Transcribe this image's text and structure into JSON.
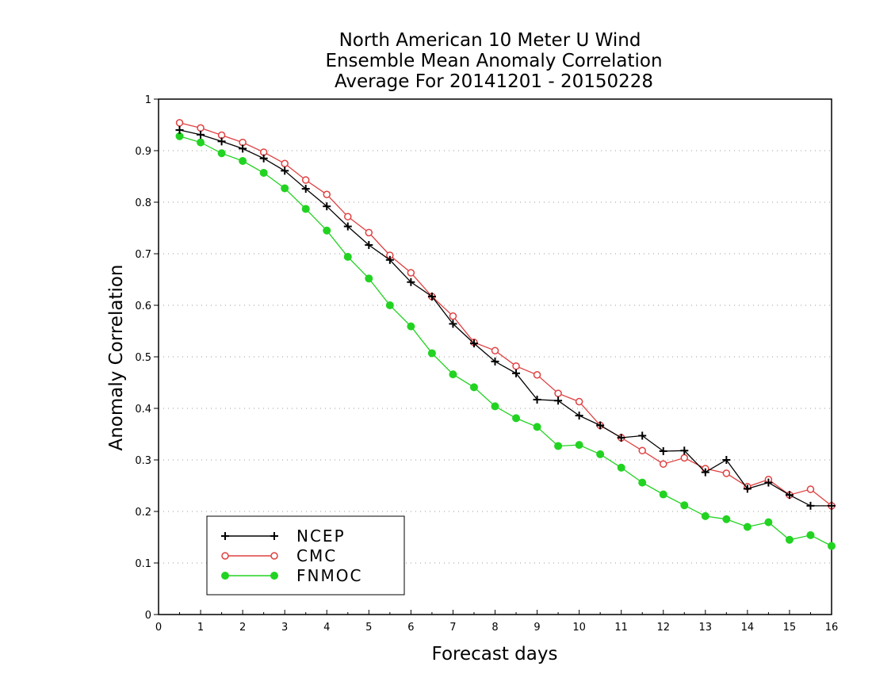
{
  "chart_data": {
    "type": "line",
    "title_lines": [
      "North American 10 Meter U Wind",
      "Ensemble Mean Anomaly Correlation",
      "Average For 20141201 - 20150228"
    ],
    "xlabel": "Forecast days",
    "ylabel": "Anomaly Correlation",
    "xlim": [
      0,
      16
    ],
    "ylim": [
      0,
      1
    ],
    "x_ticks": [
      0,
      1,
      2,
      3,
      4,
      5,
      6,
      7,
      8,
      9,
      10,
      11,
      12,
      13,
      14,
      15,
      16
    ],
    "y_ticks": [
      0,
      0.1,
      0.2,
      0.3,
      0.4,
      0.5,
      0.6,
      0.7,
      0.8,
      0.9,
      1
    ],
    "y_tick_labels": [
      "0",
      "0.1",
      "0.2",
      "0.3",
      "0.4",
      "0.5",
      "0.6",
      "0.7",
      "0.8",
      "0.9",
      "1"
    ],
    "x_tick_labels": [
      "0",
      "1",
      "2",
      "3",
      "4",
      "5",
      "6",
      "7",
      "8",
      "9",
      "10",
      "11",
      "12",
      "13",
      "14",
      "15",
      "16"
    ],
    "grid": "horizontal dotted",
    "legend_position": "bottom-left",
    "x": [
      0.5,
      1,
      1.5,
      2,
      2.5,
      3,
      3.5,
      4,
      4.5,
      5,
      5.5,
      6,
      6.5,
      7,
      7.5,
      8,
      8.5,
      9,
      9.5,
      10,
      10.5,
      11,
      11.5,
      12,
      12.5,
      13,
      13.5,
      14,
      14.5,
      15,
      15.5,
      16
    ],
    "series": [
      {
        "name": "NCEP",
        "color": "#000000",
        "marker": "plus",
        "values": [
          0.94,
          0.931,
          0.918,
          0.904,
          0.885,
          0.861,
          0.826,
          0.792,
          0.753,
          0.717,
          0.688,
          0.645,
          0.617,
          0.564,
          0.526,
          0.491,
          0.468,
          0.417,
          0.415,
          0.386,
          0.367,
          0.343,
          0.347,
          0.317,
          0.318,
          0.276,
          0.3,
          0.244,
          0.256,
          0.232,
          0.211,
          0.211
        ]
      },
      {
        "name": "CMC",
        "color": "#e04040",
        "marker": "open-circle",
        "values": [
          0.954,
          0.944,
          0.93,
          0.916,
          0.897,
          0.875,
          0.843,
          0.815,
          0.772,
          0.741,
          0.697,
          0.663,
          0.617,
          0.579,
          0.528,
          0.512,
          0.482,
          0.465,
          0.429,
          0.413,
          0.367,
          0.343,
          0.318,
          0.292,
          0.304,
          0.283,
          0.274,
          0.248,
          0.262,
          0.232,
          0.243,
          0.211
        ]
      },
      {
        "name": "FNMOC",
        "color": "#22d322",
        "marker": "filled-circle",
        "values": [
          0.928,
          0.916,
          0.895,
          0.88,
          0.857,
          0.827,
          0.787,
          0.745,
          0.694,
          0.652,
          0.6,
          0.559,
          0.507,
          0.466,
          0.441,
          0.404,
          0.381,
          0.364,
          0.327,
          0.329,
          0.311,
          0.285,
          0.256,
          0.233,
          0.212,
          0.191,
          0.185,
          0.17,
          0.179,
          0.145,
          0.154,
          0.133
        ]
      }
    ]
  }
}
